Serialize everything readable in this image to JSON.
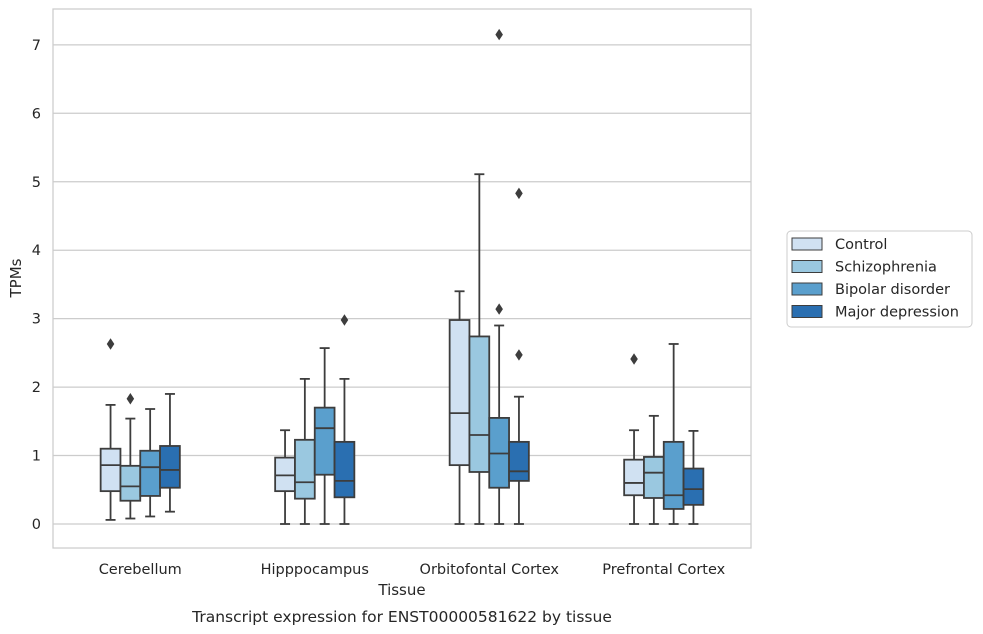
{
  "chart_data": {
    "type": "boxplot",
    "title": "",
    "caption": "Transcript expression for ENST00000581622 by tissue",
    "xlabel": "Tissue",
    "ylabel": "TPMs",
    "ylim": [
      -0.35,
      7.5
    ],
    "yticks": [
      0,
      1,
      2,
      3,
      4,
      5,
      6,
      7
    ],
    "grid": "horizontal",
    "legend_position": "right",
    "categories": [
      "Cerebellum",
      "Hipppocampus",
      "Orbitofontal Cortex",
      "Prefrontal Cortex"
    ],
    "series": [
      {
        "name": "Control",
        "color": "#d0e1f2",
        "boxes": [
          {
            "whislo": 0.06,
            "q1": 0.48,
            "med": 0.86,
            "q3": 1.1,
            "whishi": 1.74,
            "fliers": [
              2.63
            ]
          },
          {
            "whislo": 0.0,
            "q1": 0.48,
            "med": 0.71,
            "q3": 0.97,
            "whishi": 1.37,
            "fliers": []
          },
          {
            "whislo": 0.0,
            "q1": 0.86,
            "med": 1.62,
            "q3": 2.98,
            "whishi": 3.4,
            "fliers": []
          },
          {
            "whislo": 0.0,
            "q1": 0.42,
            "med": 0.6,
            "q3": 0.94,
            "whishi": 1.37,
            "fliers": [
              2.41
            ]
          }
        ]
      },
      {
        "name": "Schizophrenia",
        "color": "#9ac8e0",
        "boxes": [
          {
            "whislo": 0.08,
            "q1": 0.34,
            "med": 0.55,
            "q3": 0.85,
            "whishi": 1.54,
            "fliers": [
              1.83
            ]
          },
          {
            "whislo": 0.0,
            "q1": 0.37,
            "med": 0.61,
            "q3": 1.23,
            "whishi": 2.12,
            "fliers": []
          },
          {
            "whislo": 0.0,
            "q1": 0.76,
            "med": 1.3,
            "q3": 2.74,
            "whishi": 5.11,
            "fliers": []
          },
          {
            "whislo": 0.0,
            "q1": 0.38,
            "med": 0.75,
            "q3": 0.98,
            "whishi": 1.58,
            "fliers": []
          }
        ]
      },
      {
        "name": "Bipolar disorder",
        "color": "#5a9fcd",
        "boxes": [
          {
            "whislo": 0.11,
            "q1": 0.41,
            "med": 0.83,
            "q3": 1.07,
            "whishi": 1.68,
            "fliers": []
          },
          {
            "whislo": 0.0,
            "q1": 0.72,
            "med": 1.4,
            "q3": 1.7,
            "whishi": 2.57,
            "fliers": []
          },
          {
            "whislo": 0.0,
            "q1": 0.53,
            "med": 1.03,
            "q3": 1.55,
            "whishi": 2.9,
            "fliers": [
              3.14,
              7.15
            ]
          },
          {
            "whislo": 0.0,
            "q1": 0.22,
            "med": 0.42,
            "q3": 1.2,
            "whishi": 2.63,
            "fliers": []
          }
        ]
      },
      {
        "name": "Major depression",
        "color": "#2a6fb1",
        "boxes": [
          {
            "whislo": 0.18,
            "q1": 0.53,
            "med": 0.79,
            "q3": 1.14,
            "whishi": 1.9,
            "fliers": []
          },
          {
            "whislo": 0.0,
            "q1": 0.39,
            "med": 0.63,
            "q3": 1.2,
            "whishi": 2.12,
            "fliers": [
              2.98
            ]
          },
          {
            "whislo": 0.0,
            "q1": 0.63,
            "med": 0.77,
            "q3": 1.2,
            "whishi": 1.86,
            "fliers": [
              2.47,
              4.83
            ]
          },
          {
            "whislo": 0.0,
            "q1": 0.28,
            "med": 0.51,
            "q3": 0.81,
            "whishi": 1.36,
            "fliers": []
          }
        ]
      }
    ]
  }
}
